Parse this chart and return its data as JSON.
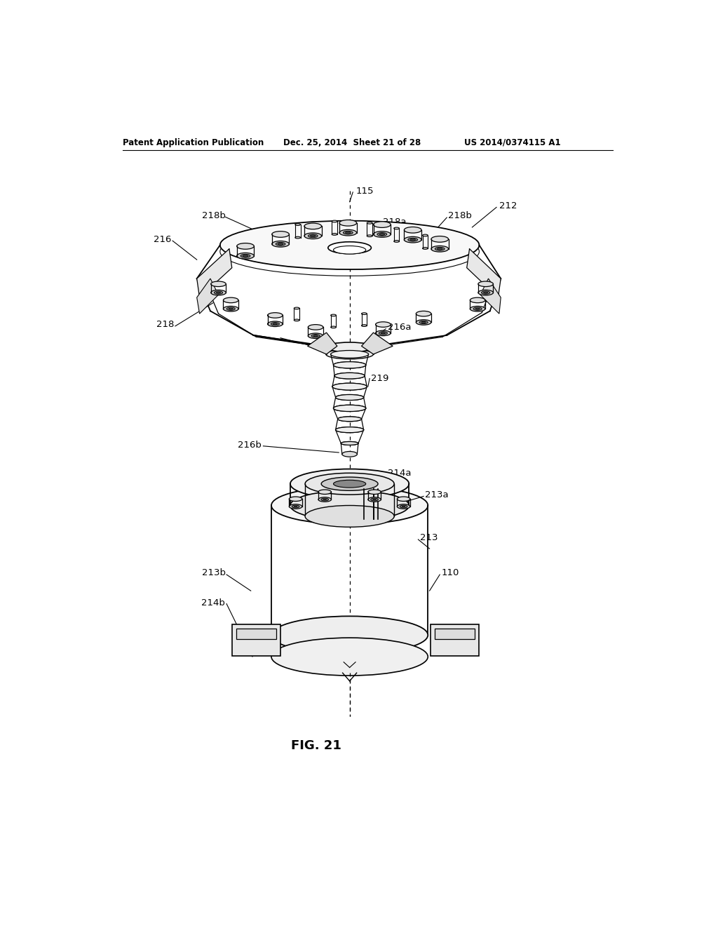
{
  "bg_color": "#ffffff",
  "line_color": "#000000",
  "fig_label": "FIG. 21",
  "header_left": "Patent Application Publication",
  "header_mid": "Dec. 25, 2014  Sheet 21 of 28",
  "header_right": "US 2014/0374115 A1"
}
